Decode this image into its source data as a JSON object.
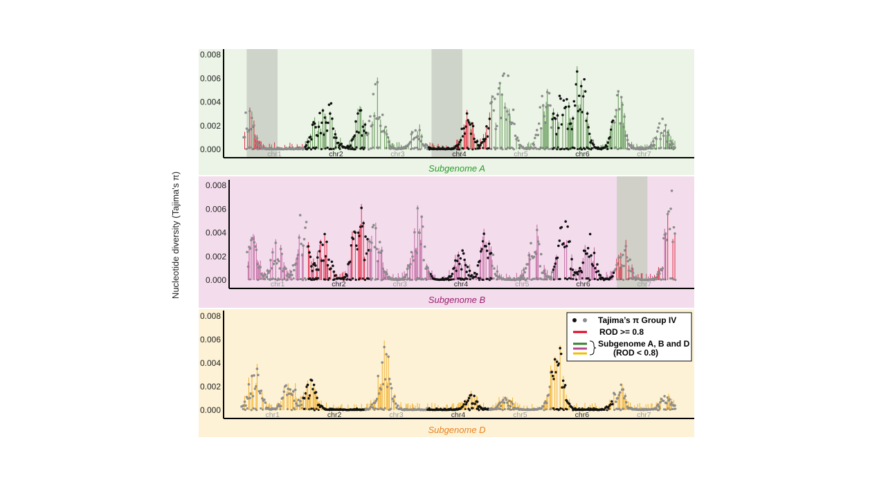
{
  "chart_data": {
    "type": "scatter",
    "ylabel": "Nucleotide diversity (Tajima's π)",
    "ylim": [
      0,
      0.008
    ],
    "yticks": [
      "0.000",
      "0.002",
      "0.004",
      "0.006",
      "0.008"
    ],
    "legend": {
      "placement": "inside bottom panel, top-right",
      "entries": [
        {
          "label": "Tajima’s π Group IV",
          "marker": "dots",
          "colors": [
            "#111111",
            "#8c8c8c"
          ]
        },
        {
          "label": "ROD >= 0.8",
          "marker": "line",
          "colors": [
            "#e0001b"
          ]
        },
        {
          "label": "Subgenome A, B and D",
          "marker": "lines",
          "colors": [
            "#3a7d2c",
            "#b4468c",
            "#f0c000"
          ]
        },
        {
          "label": "(ROD < 0.8)",
          "marker": "none",
          "colors": []
        }
      ]
    },
    "panels": [
      {
        "title": "Subgenome A",
        "title_color": "#2e9a2e",
        "background": "#ebf4e6",
        "line_color": "#3a7d2c",
        "chromosomes": [
          "chr1",
          "chr2",
          "chr3",
          "chr4",
          "chr5",
          "chr6",
          "chr7"
        ],
        "highlighted_chromosomes": [
          "chr1",
          "chr4"
        ],
        "red_regions": [
          "chr1",
          "chr4"
        ],
        "peaks": [
          {
            "pos": 0.01,
            "value": 0.0032
          },
          {
            "pos": 0.17,
            "value": 0.0025
          },
          {
            "pos": 0.2,
            "value": 0.0035
          },
          {
            "pos": 0.27,
            "value": 0.003
          },
          {
            "pos": 0.31,
            "value": 0.0055
          },
          {
            "pos": 0.4,
            "value": 0.002
          },
          {
            "pos": 0.52,
            "value": 0.0028
          },
          {
            "pos": 0.58,
            "value": 0.004
          },
          {
            "pos": 0.61,
            "value": 0.0065
          },
          {
            "pos": 0.7,
            "value": 0.0055
          },
          {
            "pos": 0.74,
            "value": 0.0045
          },
          {
            "pos": 0.78,
            "value": 0.0074
          },
          {
            "pos": 0.87,
            "value": 0.0045
          },
          {
            "pos": 0.97,
            "value": 0.0025
          }
        ]
      },
      {
        "title": "Subgenome B",
        "title_color": "#9a1f6e",
        "background": "#f3dcec",
        "line_color": "#b4468c",
        "chromosomes": [
          "chr1",
          "chr2",
          "chr3",
          "chr4",
          "chr5",
          "chr6",
          "chr7"
        ],
        "highlighted_chromosomes": [
          "chr7"
        ],
        "red_regions": [
          "chr2",
          "chr7"
        ],
        "peaks": [
          {
            "pos": 0.01,
            "value": 0.0038
          },
          {
            "pos": 0.07,
            "value": 0.003
          },
          {
            "pos": 0.13,
            "value": 0.0055
          },
          {
            "pos": 0.18,
            "value": 0.0038
          },
          {
            "pos": 0.26,
            "value": 0.0066
          },
          {
            "pos": 0.3,
            "value": 0.0045
          },
          {
            "pos": 0.4,
            "value": 0.006
          },
          {
            "pos": 0.5,
            "value": 0.0025
          },
          {
            "pos": 0.56,
            "value": 0.004
          },
          {
            "pos": 0.67,
            "value": 0.005
          },
          {
            "pos": 0.74,
            "value": 0.0055
          },
          {
            "pos": 0.8,
            "value": 0.004
          },
          {
            "pos": 0.88,
            "value": 0.003
          },
          {
            "pos": 0.99,
            "value": 0.0075
          }
        ]
      },
      {
        "title": "Subgenome D",
        "title_color": "#e8821e",
        "background": "#fdf2d6",
        "line_color": "#f0a000",
        "chromosomes": [
          "chr1",
          "chr2",
          "chr3",
          "chr4",
          "chr5",
          "chr6",
          "chr7"
        ],
        "highlighted_chromosomes": [],
        "red_regions": [],
        "peaks": [
          {
            "pos": 0.03,
            "value": 0.0035
          },
          {
            "pos": 0.11,
            "value": 0.0027
          },
          {
            "pos": 0.16,
            "value": 0.0024
          },
          {
            "pos": 0.33,
            "value": 0.0052
          },
          {
            "pos": 0.53,
            "value": 0.0014
          },
          {
            "pos": 0.61,
            "value": 0.001
          },
          {
            "pos": 0.72,
            "value": 0.0022
          },
          {
            "pos": 0.73,
            "value": 0.0042
          },
          {
            "pos": 0.87,
            "value": 0.0022
          },
          {
            "pos": 0.98,
            "value": 0.0012
          }
        ]
      }
    ]
  }
}
